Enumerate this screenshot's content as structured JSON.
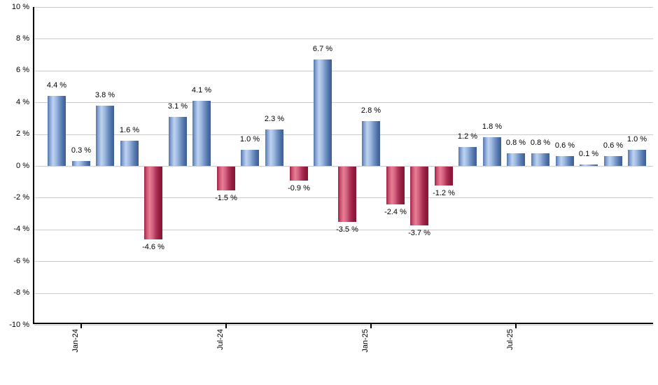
{
  "chart_data": {
    "type": "bar",
    "title": "",
    "bar_count": 25,
    "values": [
      4.4,
      0.3,
      3.8,
      1.6,
      -4.6,
      3.1,
      4.1,
      -1.5,
      1.0,
      2.3,
      -0.9,
      6.7,
      -3.5,
      2.8,
      -2.4,
      -3.7,
      -1.2,
      1.2,
      1.8,
      0.8,
      0.8,
      0.6,
      0.1,
      0.6,
      1.0
    ],
    "value_labels": [
      "4.4 %",
      "0.3 %",
      "3.8 %",
      "1.6 %",
      "-4.6 %",
      "3.1 %",
      "4.1 %",
      "-1.5 %",
      "1.0 %",
      "2.3 %",
      "-0.9 %",
      "6.7 %",
      "-3.5 %",
      "2.8 %",
      "-2.4 %",
      "-3.7 %",
      "-1.2 %",
      "1.2 %",
      "1.8 %",
      "0.8 %",
      "0.8 %",
      "0.6 %",
      "0.1 %",
      "0.6 %",
      "1.0 %"
    ],
    "y_ticks": [
      {
        "value": 10,
        "label": "10 %"
      },
      {
        "value": 8,
        "label": "8 %"
      },
      {
        "value": 6,
        "label": "6 %"
      },
      {
        "value": 4,
        "label": "4 %"
      },
      {
        "value": 2,
        "label": "2 %"
      },
      {
        "value": 0,
        "label": "0 %"
      },
      {
        "value": -2,
        "label": "-2 %"
      },
      {
        "value": -4,
        "label": "-4 %"
      },
      {
        "value": -6,
        "label": "-6 %"
      },
      {
        "value": -8,
        "label": "-8 %"
      },
      {
        "value": -10,
        "label": "-10 %"
      }
    ],
    "x_ticks": [
      {
        "slot": 1,
        "label": "Jan-24"
      },
      {
        "slot": 7,
        "label": "Jul-24"
      },
      {
        "slot": 13,
        "label": "Jan-25"
      },
      {
        "slot": 19,
        "label": "Jul-25"
      }
    ],
    "ylim": [
      -10,
      10
    ],
    "grid": true,
    "legend": "none",
    "colors": {
      "positive_stops": [
        "#5276ad",
        "#8aa7d5",
        "#bed3ef",
        "#9db8e0",
        "#7292c4",
        "#4d6ea6",
        "#3e5e94"
      ],
      "negative_stops": [
        "#9e2144",
        "#cc5574",
        "#e87e95",
        "#d15f7c",
        "#ad3156",
        "#8f1b3b",
        "#871634"
      ],
      "axis": "#000000",
      "gridline": "#cccccc",
      "label_text": "#000000",
      "background": "#ffffff"
    }
  }
}
